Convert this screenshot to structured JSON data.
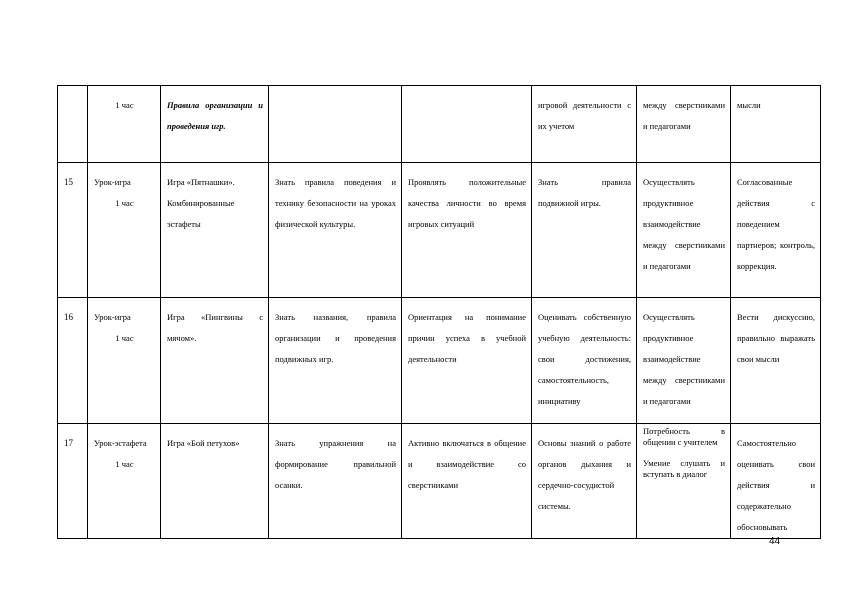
{
  "table": {
    "rows": [
      {
        "num": "",
        "type": "",
        "hours": "1 час",
        "content": [
          "Правила организации и проведения игр."
        ],
        "subject": "",
        "personal": "",
        "regulatory": "игровой деятельности с их учетом",
        "communicative": [
          "между сверстниками и педагогами"
        ],
        "extra": "мысли"
      },
      {
        "num": "15",
        "type": "Урок-игра",
        "hours": "1 час",
        "content": [
          "Игра «Пятнашки».",
          "Комбинированные эстафеты"
        ],
        "subject": "Знать правила поведения и технику безопасности на уроках физической культуры.",
        "personal": "Проявлять положительные качества личности во время игровых ситуаций",
        "regulatory": "Знать правила подвижной игры.",
        "communicative": [
          "Осуществлять продуктивное взаимодействие между сверстниками и педагогами"
        ],
        "extra": "Согласованные действия с поведением партнеров; контроль, коррекция."
      },
      {
        "num": "16",
        "type": "Урок-игра",
        "hours": "1 час",
        "content": [
          "Игра «Пингвины с мячом»."
        ],
        "subject": "Знать названия, правила организации и проведения подвижных игр.",
        "personal": "Ориентация на понимание причин успеха в учебной деятельности",
        "regulatory": "Оценивать собственную учебную деятельность: свои достижения, самостоятельность, инициативу",
        "communicative": [
          "Осуществлять продуктивное взаимодействие между сверстниками и педагогами"
        ],
        "extra": "Вести дискуссию, правильно выражать свои мысли"
      },
      {
        "num": "17",
        "type": "Урок-эстафета",
        "hours": "1 час",
        "content": [
          "Игра «Бой петухов»"
        ],
        "subject": "Знать упражнения на формирование правильной осанки.",
        "personal": "Активно включаться в общение и взаимодействие со сверстниками",
        "regulatory": "Основы знаний о работе органов дыхания и сердечно-сосудистой системы.",
        "communicative": [
          "Потребность в общении с учителем",
          "Умение слушать и вступать в диалог"
        ],
        "extra": "Самостоятельно оценивать свои действия и содержательно обосновывать"
      }
    ]
  },
  "page_number": "44"
}
